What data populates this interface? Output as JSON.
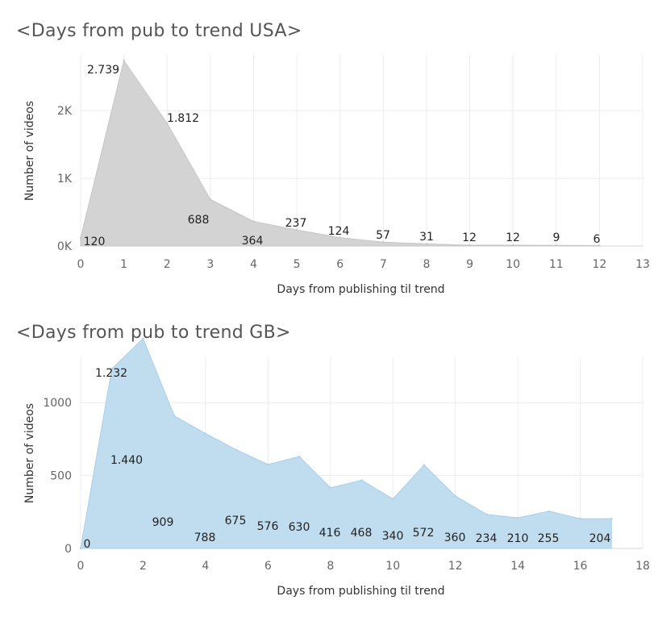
{
  "charts": [
    {
      "title": "<Days from pub to trend USA>"
    },
    {
      "title": "<Days from pub to trend GB>"
    }
  ],
  "chart_data": [
    {
      "type": "area",
      "title": "<Days from pub to trend USA>",
      "xlabel": "Days from publishing til trend",
      "ylabel": "Number of videos",
      "x": [
        0,
        1,
        2,
        3,
        4,
        5,
        6,
        7,
        8,
        9,
        10,
        11,
        12
      ],
      "values": [
        120,
        2739,
        1812,
        688,
        364,
        237,
        124,
        57,
        31,
        12,
        12,
        9,
        6
      ],
      "data_labels": [
        "120",
        "2.739",
        "1.812",
        "688",
        "364",
        "237",
        "124",
        "57",
        "31",
        "12",
        "12",
        "9",
        "6"
      ],
      "xlim": [
        0,
        13
      ],
      "ylim": [
        0,
        2800
      ],
      "xticks": [
        "0",
        "1",
        "2",
        "3",
        "4",
        "5",
        "6",
        "7",
        "8",
        "9",
        "10",
        "11",
        "12",
        "13"
      ],
      "yticks": [
        {
          "v": 0,
          "label": "0K"
        },
        {
          "v": 1000,
          "label": "1K"
        },
        {
          "v": 2000,
          "label": "2K"
        }
      ],
      "color": "#d3d3d3",
      "grid": true
    },
    {
      "type": "area",
      "title": "<Days from pub to trend GB>",
      "xlabel": "Days from publishing til trend",
      "ylabel": "Number of videos",
      "x": [
        0,
        1,
        2,
        3,
        4,
        5,
        6,
        7,
        8,
        9,
        10,
        11,
        12,
        13,
        14,
        15,
        16,
        17
      ],
      "values": [
        0,
        1232,
        1440,
        909,
        788,
        675,
        576,
        630,
        416,
        468,
        340,
        572,
        360,
        234,
        210,
        255,
        204,
        204
      ],
      "data_labels": [
        "0",
        "1.232",
        "1.440",
        "909",
        "788",
        "675",
        "576",
        "630",
        "416",
        "468",
        "340",
        "572",
        "360",
        "234",
        "210",
        "255",
        "204",
        ""
      ],
      "xlim": [
        0,
        18
      ],
      "ylim": [
        0,
        1300
      ],
      "xticks": [
        "0",
        "2",
        "4",
        "6",
        "8",
        "10",
        "12",
        "14",
        "16",
        "18"
      ],
      "yticks": [
        {
          "v": 0,
          "label": "0"
        },
        {
          "v": 500,
          "label": "500"
        },
        {
          "v": 1000,
          "label": "1000"
        }
      ],
      "color": "#c0dcef",
      "grid": true
    }
  ]
}
